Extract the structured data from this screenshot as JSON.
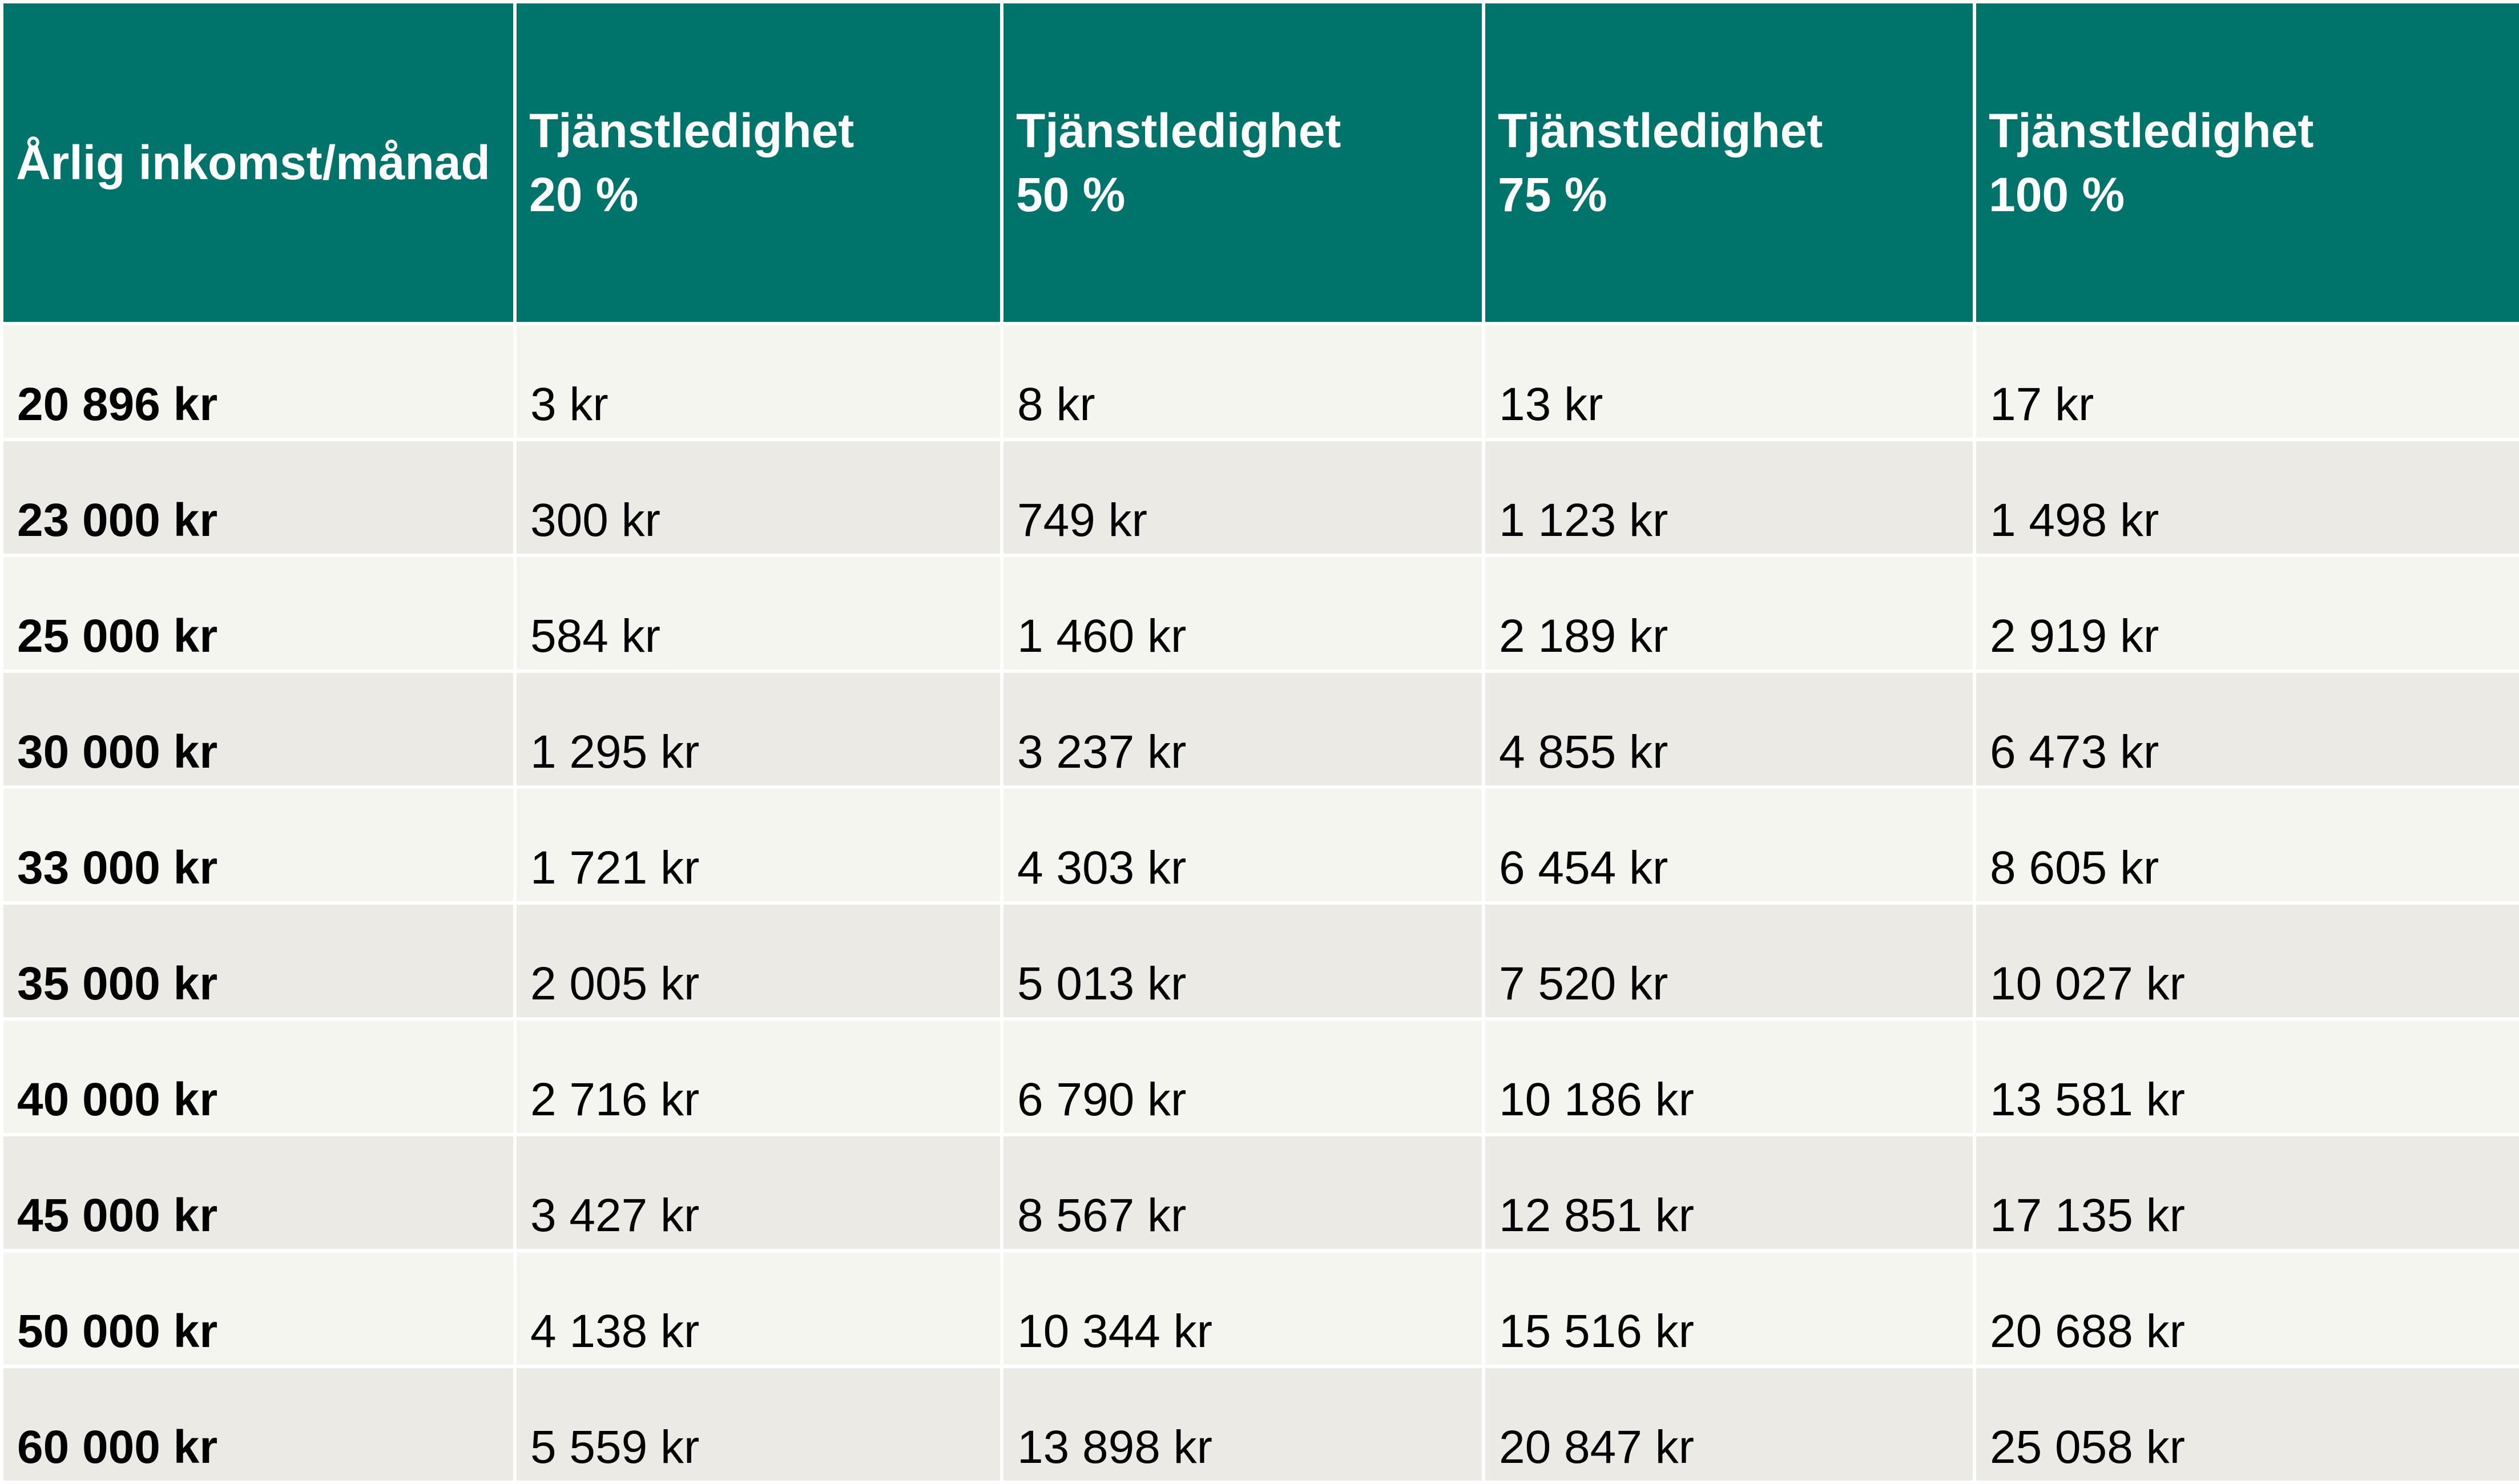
{
  "table": {
    "headers": [
      {
        "line1": "Årlig inkomst/månad",
        "line2": ""
      },
      {
        "line1": "Tjänstledighet",
        "line2": "20 %"
      },
      {
        "line1": "Tjänstledighet",
        "line2": "50 %"
      },
      {
        "line1": "Tjänstledighet",
        "line2": "75 %"
      },
      {
        "line1": "Tjänstledighet",
        "line2": "100 %"
      }
    ],
    "rows": [
      [
        "20 896 kr",
        "3 kr",
        "8 kr",
        "13 kr",
        "17 kr"
      ],
      [
        "23 000 kr",
        "300 kr",
        "749 kr",
        "1 123 kr",
        "1 498 kr"
      ],
      [
        "25 000 kr",
        "584 kr",
        "1 460 kr",
        "2 189 kr",
        "2 919 kr"
      ],
      [
        "30 000 kr",
        "1 295 kr",
        "3 237 kr",
        "4 855 kr",
        "6 473 kr"
      ],
      [
        "33 000 kr",
        "1 721 kr",
        "4 303 kr",
        "6 454 kr",
        "8 605 kr"
      ],
      [
        "35 000 kr",
        "2 005 kr",
        "5 013 kr",
        "7 520 kr",
        "10 027 kr"
      ],
      [
        "40 000 kr",
        "2 716 kr",
        "6 790 kr",
        "10 186 kr",
        "13 581 kr"
      ],
      [
        "45 000 kr",
        "3 427 kr",
        "8 567 kr",
        "12 851 kr",
        "17 135 kr"
      ],
      [
        "50 000 kr",
        "4 138 kr",
        "10 344 kr",
        "15 516 kr",
        "20 688 kr"
      ],
      [
        "60 000 kr",
        "5 559 kr",
        "13 898 kr",
        "20 847 kr",
        "25 058 kr"
      ]
    ]
  },
  "colors": {
    "header_background": "#00736b",
    "header_text": "#ffffff",
    "row_light": "#f4f5ef",
    "row_dark": "#ebeae4"
  }
}
